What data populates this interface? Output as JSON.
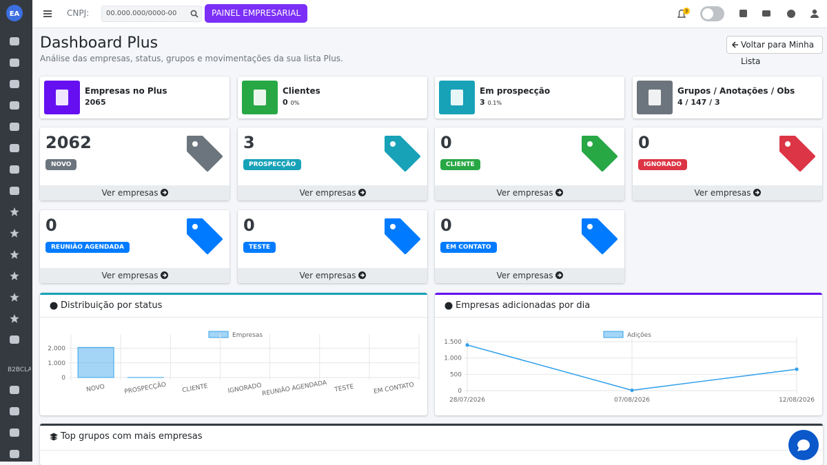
{
  "sidebar": {
    "logo": "EA",
    "section_label": "B2BCLA"
  },
  "topbar": {
    "cnpj_label": "CNPJ:",
    "cnpj_placeholder": "00.000.000/0000-00",
    "button": "PAINEL EMPRESARIAL",
    "notifications": 3
  },
  "header": {
    "title": "Dashboard Plus",
    "subtitle": "Análise das empresas, status, grupos e movimentações da sua lista Plus.",
    "back_button": "Voltar para Minha Lista"
  },
  "info_boxes": [
    {
      "label": "Empresas no Plus",
      "value": 2065,
      "color": "#6610f2"
    },
    {
      "label": "Clientes",
      "value": 0,
      "extra": "0%",
      "color": "#28a745"
    },
    {
      "label": "Em prospecção",
      "value": 3,
      "extra": "0.1%",
      "color": "#17a2b8"
    },
    {
      "label": "Grupos / Anotações / Obs",
      "value": "4 / 147 / 3",
      "color": "#6c757d"
    }
  ],
  "status_link": "Ver empresas",
  "status_boxes": [
    {
      "value": 2062,
      "badge": "NOVO",
      "color": "#6c757d"
    },
    {
      "value": 3,
      "badge": "PROSPECÇÃO",
      "color": "#17a2b8"
    },
    {
      "value": 0,
      "badge": "CLIENTE",
      "color": "#28a745"
    },
    {
      "value": 0,
      "badge": "IGNORADO",
      "color": "#dc3545"
    },
    {
      "value": 0,
      "badge": "REUNIÃO AGENDADA",
      "color": "#007bff"
    },
    {
      "value": 0,
      "badge": "TESTE",
      "color": "#007bff"
    },
    {
      "value": 0,
      "badge": "EM CONTATO",
      "color": "#007bff"
    }
  ],
  "chart_data": [
    {
      "type": "bar",
      "title": "Distribuição por status",
      "categories": [
        "NOVO",
        "PROSPECÇÃO",
        "CLIENTE",
        "IGNORADO",
        "REUNIÃO AGENDADA",
        "TESTE",
        "EM CONTATO"
      ],
      "series": [
        {
          "name": "Empresas",
          "color": "#36a2eb",
          "values": [
            2062,
            3,
            0,
            0,
            0,
            0,
            0
          ]
        }
      ],
      "ylim": [
        0,
        2500
      ],
      "yticks": [
        0,
        {
          "value": 1000,
          "label": "1.000"
        },
        {
          "value": 2000,
          "label": "2.000"
        }
      ],
      "grid": true
    },
    {
      "type": "line",
      "title": "Empresas adicionadas por dia",
      "categories": [
        "28/07/2026",
        "07/08/2026",
        "12/08/2026"
      ],
      "series": [
        {
          "name": "Adições",
          "color": "#36a2eb",
          "values": [
            1400,
            10,
            655
          ]
        }
      ],
      "ylim": [
        0,
        1500
      ],
      "yticks": [
        0,
        500,
        {
          "value": 1000,
          "label": "1.000"
        },
        {
          "value": 1500,
          "label": "1.500"
        }
      ],
      "grid": true
    }
  ],
  "groups_panel": {
    "title": "Top grupos com mais empresas"
  }
}
